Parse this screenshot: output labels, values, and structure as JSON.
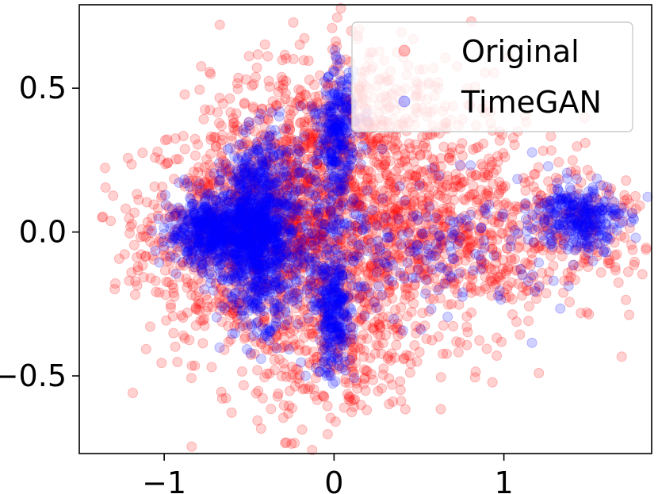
{
  "chart_data": {
    "type": "scatter",
    "title": "",
    "xlabel": "",
    "ylabel": "",
    "xlim": [
      -1.5,
      1.87
    ],
    "ylim": [
      -0.77,
      0.79
    ],
    "x_ticks": [
      {
        "value": -1,
        "label": "−1"
      },
      {
        "value": 0,
        "label": "0"
      },
      {
        "value": 1,
        "label": "1"
      }
    ],
    "y_ticks": [
      {
        "value": 0.5,
        "label": "0.5"
      },
      {
        "value": 0.0,
        "label": "0.0"
      },
      {
        "value": -0.5,
        "label": "−0.5"
      }
    ],
    "grid": false,
    "legend_position": "top-right",
    "point_alpha": 0.18,
    "series": [
      {
        "name": "Original",
        "color": "#ff0000",
        "clusters": [
          {
            "cx": -0.55,
            "cy": 0.0,
            "sx": 0.28,
            "sy": 0.22,
            "n": 700
          },
          {
            "cx": -0.15,
            "cy": 0.05,
            "sx": 0.22,
            "sy": 0.25,
            "n": 600
          },
          {
            "cx": 0.3,
            "cy": 0.05,
            "sx": 0.32,
            "sy": 0.25,
            "n": 750
          },
          {
            "cx": 0.9,
            "cy": 0.0,
            "sx": 0.35,
            "sy": 0.17,
            "n": 420
          },
          {
            "cx": 0.15,
            "cy": 0.45,
            "sx": 0.3,
            "sy": 0.12,
            "n": 180
          },
          {
            "cx": 0.05,
            "cy": -0.45,
            "sx": 0.25,
            "sy": 0.12,
            "n": 180
          },
          {
            "cx": 1.55,
            "cy": 0.0,
            "sx": 0.18,
            "sy": 0.12,
            "n": 90
          },
          {
            "cx": -1.0,
            "cy": 0.0,
            "sx": 0.2,
            "sy": 0.12,
            "n": 90
          }
        ]
      },
      {
        "name": "TimeGAN",
        "color": "#0000ff",
        "clusters": [
          {
            "cx": -0.45,
            "cy": 0.0,
            "sx": 0.1,
            "sy": 0.15,
            "n": 1000
          },
          {
            "cx": -0.72,
            "cy": 0.0,
            "sx": 0.13,
            "sy": 0.06,
            "n": 550
          },
          {
            "cx": 0.02,
            "cy": 0.35,
            "sx": 0.05,
            "sy": 0.1,
            "n": 250
          },
          {
            "cx": 0.0,
            "cy": -0.3,
            "sx": 0.05,
            "sy": 0.1,
            "n": 250
          },
          {
            "cx": -0.1,
            "cy": 0.0,
            "sx": 0.2,
            "sy": 0.17,
            "n": 300
          },
          {
            "cx": 1.45,
            "cy": 0.05,
            "sx": 0.12,
            "sy": 0.06,
            "n": 300
          },
          {
            "cx": 0.65,
            "cy": -0.05,
            "sx": 0.35,
            "sy": 0.12,
            "n": 160
          }
        ]
      }
    ]
  }
}
